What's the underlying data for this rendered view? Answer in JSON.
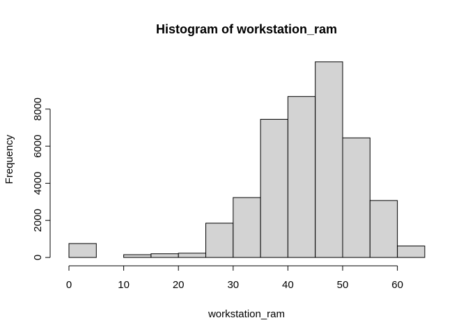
{
  "chart_data": {
    "type": "bar",
    "title": "Histogram of workstation_ram",
    "xlabel": "workstation_ram",
    "ylabel": "Frequency",
    "bin_edges": [
      0,
      5,
      10,
      15,
      20,
      25,
      30,
      35,
      40,
      45,
      50,
      55,
      60,
      65
    ],
    "values": [
      750,
      0,
      150,
      200,
      230,
      1850,
      3230,
      7450,
      8680,
      10550,
      6450,
      3070,
      620
    ],
    "xlim": [
      0,
      65
    ],
    "ylim": [
      0,
      10000
    ],
    "x_ticks": [
      0,
      10,
      20,
      30,
      40,
      50,
      60
    ],
    "y_ticks": [
      0,
      2000,
      4000,
      6000,
      8000
    ],
    "grid": false,
    "bar_color": "#d3d3d3",
    "edge_color": "#000000"
  }
}
